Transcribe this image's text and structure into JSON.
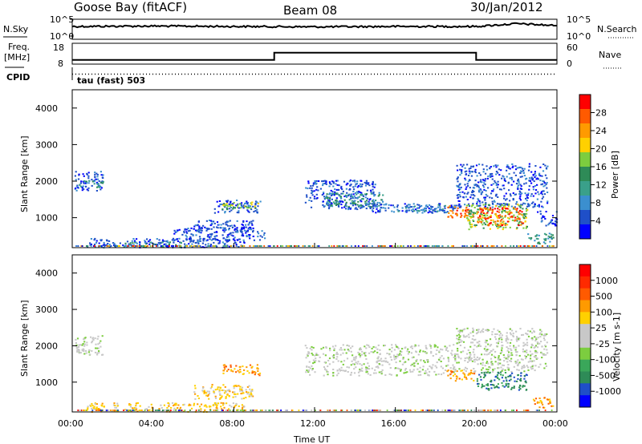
{
  "header": {
    "station": "Goose Bay (fitACF)",
    "beam": "Beam 08",
    "date": "30/Jan/2012"
  },
  "strip": {
    "nsky_label": "N.Sky",
    "nsky_ticks": [
      "10^5",
      "10^0"
    ],
    "nsearch_label": "N.Search",
    "nsearch_ticks": [
      "10^5",
      "10^0"
    ],
    "freq_label_line1": "Freq.",
    "freq_label_line2": "[MHz]",
    "freq_ticks": [
      "18",
      "8"
    ],
    "nave_label": "Nave",
    "nave_ticks": [
      "60",
      "0"
    ],
    "cpid_label": "CPID",
    "cpid_text": "tau (fast) 503"
  },
  "chart_data": [
    {
      "type": "line",
      "title": "",
      "series": [
        {
          "name": "N.Sky",
          "x": [
            "00:00",
            "04:00",
            "08:00",
            "12:00",
            "16:00",
            "20:00",
            "22:00",
            "00:00"
          ],
          "values": [
            3.2,
            3.3,
            3.2,
            3.1,
            3.2,
            3.2,
            3.9,
            3.4
          ]
        },
        {
          "name": "Freq. [MHz]",
          "x": [
            "00:00",
            "10:00",
            "10:00",
            "20:00",
            "20:00",
            "00:00"
          ],
          "values": [
            10,
            10,
            13.5,
            13.5,
            10,
            10
          ]
        },
        {
          "name": "Nave",
          "x": [
            "00:00",
            "10:00",
            "10:00",
            "20:00",
            "20:00",
            "00:00"
          ],
          "values": [
            8,
            8,
            8,
            8,
            8,
            8
          ]
        }
      ],
      "ylim_nsky": [
        0,
        5
      ],
      "ylim_freq": [
        8,
        18
      ],
      "ylim_nave": [
        0,
        60
      ]
    },
    {
      "type": "heatmap",
      "xlabel": "",
      "ylabel": "Slant Range [km]",
      "xlim_hours": [
        0,
        24
      ],
      "ylim": [
        180,
        4500
      ],
      "yticks": [
        1000,
        2000,
        3000,
        4000
      ],
      "colorbar_label": "Power [dB]",
      "colorbar_ticks": [
        "28",
        "24",
        "20",
        "16",
        "12",
        "8",
        "4"
      ],
      "colorbar_colors": [
        "#0000ff",
        "#1f4fc8",
        "#3b8fcf",
        "#3aa08a",
        "#2e8b57",
        "#7ccd3f",
        "#ffd000",
        "#ff9a00",
        "#ff5a00",
        "#ff0000"
      ],
      "regions": [
        {
          "x": [
            0.1,
            1.5
          ],
          "y": [
            1750,
            2300
          ],
          "level": 1
        },
        {
          "x": [
            0.3,
            1.5
          ],
          "y": [
            1850,
            2050
          ],
          "level": 3
        },
        {
          "x": [
            7.0,
            9.3
          ],
          "y": [
            1150,
            1500
          ],
          "level": 1
        },
        {
          "x": [
            7.4,
            9.3
          ],
          "y": [
            1250,
            1450
          ],
          "level": 5
        },
        {
          "x": [
            6.0,
            9.0
          ],
          "y": [
            600,
            950
          ],
          "level": 1
        },
        {
          "x": [
            5.0,
            9.5
          ],
          "y": [
            400,
            750
          ],
          "level": 1
        },
        {
          "x": [
            0.7,
            8.5
          ],
          "y": [
            200,
            450
          ],
          "level": 1
        },
        {
          "x": [
            2.5,
            5.5
          ],
          "y": [
            220,
            350
          ],
          "level": 3
        },
        {
          "x": [
            11.5,
            15.0
          ],
          "y": [
            1250,
            2050
          ],
          "level": 1
        },
        {
          "x": [
            12.5,
            15.5
          ],
          "y": [
            1300,
            1700
          ],
          "level": 3
        },
        {
          "x": [
            14.5,
            19.0
          ],
          "y": [
            1150,
            1400
          ],
          "level": 1
        },
        {
          "x": [
            16.0,
            18.5
          ],
          "y": [
            1180,
            1380
          ],
          "level": 2
        },
        {
          "x": [
            18.5,
            19.9
          ],
          "y": [
            1000,
            1350
          ],
          "level": 8
        },
        {
          "x": [
            19.0,
            23.5
          ],
          "y": [
            1300,
            2500
          ],
          "level": 1
        },
        {
          "x": [
            19.5,
            22.5
          ],
          "y": [
            700,
            1400
          ],
          "level": 5
        },
        {
          "x": [
            20.0,
            22.3
          ],
          "y": [
            800,
            1300
          ],
          "level": 8
        },
        {
          "x": [
            23.0,
            24.0
          ],
          "y": [
            800,
            1200
          ],
          "level": 1
        },
        {
          "x": [
            22.5,
            23.8
          ],
          "y": [
            300,
            600
          ],
          "level": 3
        }
      ]
    },
    {
      "type": "heatmap",
      "xlabel": "Time UT",
      "ylabel": "Slant Range [km]",
      "xlim_hours": [
        0,
        24
      ],
      "xticks": [
        "00:00",
        "04:00",
        "08:00",
        "12:00",
        "16:00",
        "20:00",
        "00:00"
      ],
      "ylim": [
        180,
        4500
      ],
      "yticks": [
        1000,
        2000,
        3000,
        4000
      ],
      "colorbar_label": "Velocity [m s-1]",
      "colorbar_ticks": [
        "1000",
        "500",
        "100",
        "25",
        "-25",
        "-100",
        "-500",
        "-1000"
      ],
      "colorbar_colors": [
        "#0000ff",
        "#1f4fc8",
        "#2e8b57",
        "#3aa75a",
        "#7ccd3f",
        "#c8c8c8",
        "#c8c8c8",
        "#ffd000",
        "#ff9a00",
        "#ff5a00",
        "#ff2a00",
        "#ff0000"
      ],
      "regions": [
        {
          "x": [
            0.1,
            1.5
          ],
          "y": [
            1750,
            2300
          ],
          "level": 5
        },
        {
          "x": [
            7.4,
            9.3
          ],
          "y": [
            1200,
            1500
          ],
          "level": 8
        },
        {
          "x": [
            6.0,
            9.0
          ],
          "y": [
            550,
            950
          ],
          "level": 7
        },
        {
          "x": [
            0.7,
            8.5
          ],
          "y": [
            200,
            450
          ],
          "level": 7
        },
        {
          "x": [
            11.5,
            19.0
          ],
          "y": [
            1200,
            2050
          ],
          "level": 5
        },
        {
          "x": [
            18.5,
            19.9
          ],
          "y": [
            1050,
            1350
          ],
          "level": 8
        },
        {
          "x": [
            19.0,
            23.5
          ],
          "y": [
            1300,
            2500
          ],
          "level": 5
        },
        {
          "x": [
            20.0,
            22.5
          ],
          "y": [
            800,
            1300
          ],
          "level": 2
        },
        {
          "x": [
            22.8,
            23.8
          ],
          "y": [
            300,
            600
          ],
          "level": 8
        }
      ]
    }
  ]
}
